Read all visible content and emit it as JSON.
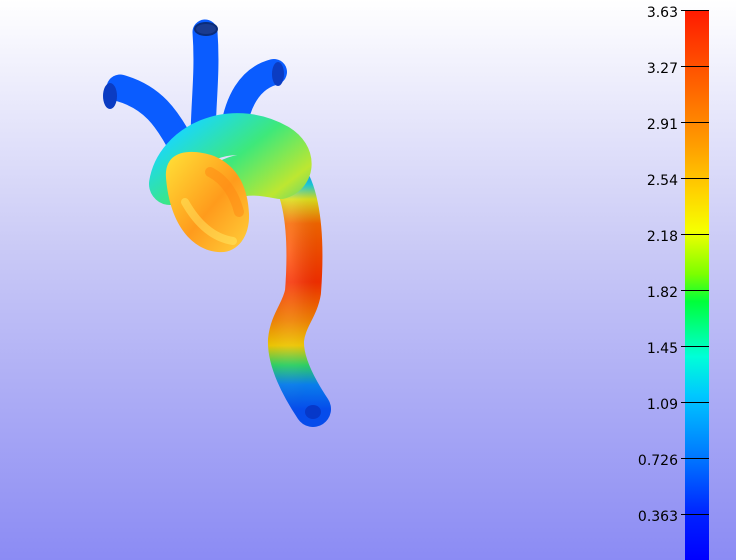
{
  "colors": {
    "background_top": "#ffffff",
    "background_bottom": "#8b8bf4"
  },
  "colorbar": {
    "ticks": [
      "3.63",
      "3.27",
      "2.91",
      "2.54",
      "2.18",
      "1.82",
      "1.45",
      "1.09",
      "0.726",
      "0.363"
    ]
  }
}
